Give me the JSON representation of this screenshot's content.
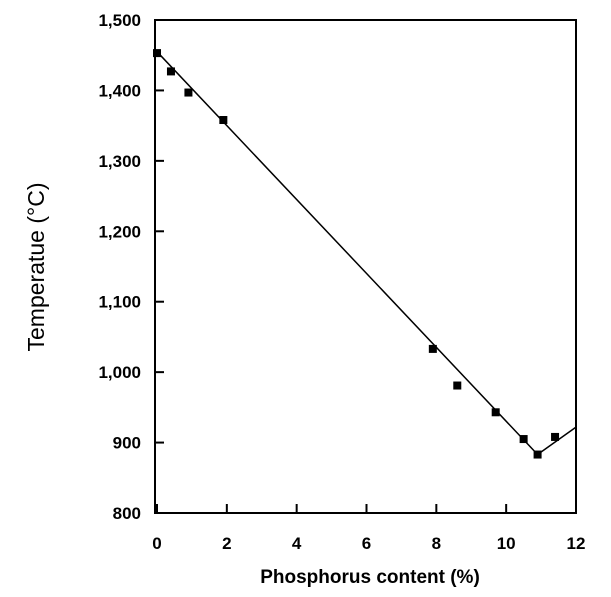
{
  "chart_data": {
    "type": "scatter",
    "xlabel": "Phosphorus content (%)",
    "ylabel": "Temperatue (°C)",
    "xlim": [
      0,
      12
    ],
    "ylim": [
      800,
      1500
    ],
    "xticks": [
      0,
      2,
      4,
      6,
      8,
      10,
      12
    ],
    "xtick_labels": [
      "0",
      "2",
      "4",
      "6",
      "8",
      "10",
      "12"
    ],
    "yticks": [
      800,
      900,
      1000,
      1100,
      1200,
      1300,
      1400,
      1500
    ],
    "ytick_labels": [
      "800",
      "900",
      "1,000",
      "1,100",
      "1,200",
      "1,300",
      "1,400",
      "1,500"
    ],
    "grid": false,
    "series": [
      {
        "mode": "markers",
        "marker": "square",
        "x": [
          0.0,
          0.4,
          0.9,
          1.9,
          7.9,
          8.6,
          9.7,
          10.5,
          10.9,
          11.4
        ],
        "y": [
          1453,
          1427,
          1397,
          1358,
          1033,
          981,
          943,
          905,
          883,
          908
        ]
      },
      {
        "mode": "line",
        "x": [
          0.0,
          10.9,
          12.0
        ],
        "y": [
          1455,
          883,
          922
        ]
      }
    ],
    "colors": {
      "marks": "#000000",
      "background": "#ffffff"
    }
  }
}
